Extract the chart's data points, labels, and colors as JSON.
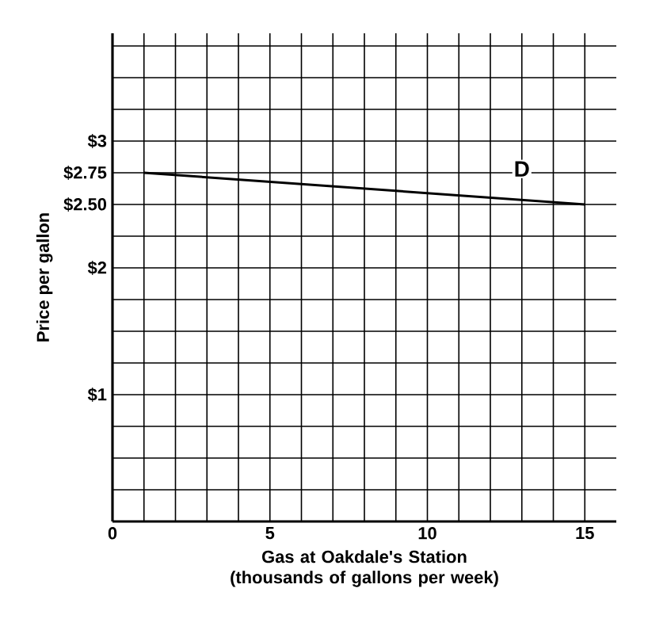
{
  "chart_data": {
    "type": "line",
    "xlabel": "Gas at Oakdale's Station (thousands of gallons per week)",
    "ylabel": "Price per gallon",
    "series": [
      {
        "x": [
          1,
          15
        ],
        "values": [
          2.75,
          2.5
        ],
        "color": "#000000"
      }
    ],
    "xlim": [
      0,
      16
    ],
    "ylim": [
      0,
      3.85
    ],
    "xticks": [
      0,
      {
        "value": 1,
        "label": null
      },
      {
        "value": 2,
        "label": null
      },
      {
        "value": 3,
        "label": null
      },
      {
        "value": 4,
        "label": null
      },
      5,
      {
        "value": 6,
        "label": null
      },
      {
        "value": 7,
        "label": null
      },
      {
        "value": 8,
        "label": null
      },
      {
        "value": 9,
        "label": null
      },
      10,
      {
        "value": 11,
        "label": null
      },
      {
        "value": 12,
        "label": null
      },
      {
        "value": 13,
        "label": null
      },
      {
        "value": 14,
        "label": null
      },
      15
    ],
    "yticks": [
      {
        "value": 0,
        "label": null
      },
      {
        "value": 0.25,
        "label": null
      },
      {
        "value": 0.5,
        "label": null
      },
      {
        "value": 0.75,
        "label": null
      },
      {
        "value": 1,
        "label": "$1"
      },
      {
        "value": 1.25,
        "label": null
      },
      {
        "value": 1.5,
        "label": null
      },
      {
        "value": 1.75,
        "label": null
      },
      {
        "value": 2,
        "label": "$2"
      },
      {
        "value": 2.25,
        "label": null
      },
      {
        "value": 2.5,
        "label": "$2.50"
      },
      {
        "value": 2.75,
        "label": "$2.75"
      },
      {
        "value": 3,
        "label": "$3"
      },
      {
        "value": 3.25,
        "label": null
      },
      {
        "value": 3.5,
        "label": null
      },
      {
        "value": 3.75,
        "label": null
      }
    ],
    "annotations": [
      {
        "text": "D",
        "x": 13,
        "y": 2.78
      }
    ],
    "grid": true,
    "marker": "none",
    "line_style": "solid"
  }
}
